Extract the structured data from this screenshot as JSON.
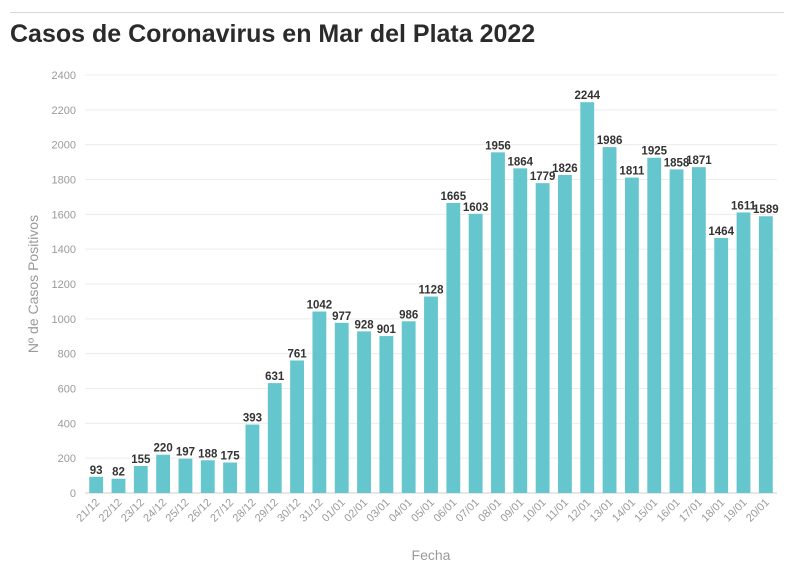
{
  "title": "Casos de Coronavirus en Mar del Plata 2022",
  "chart_data": {
    "type": "bar",
    "title": "Casos de Coronavirus en Mar del Plata 2022",
    "xlabel": "Fecha",
    "ylabel": "Nº de Casos Positivos",
    "ylim": [
      0,
      2400
    ],
    "yticks": [
      0,
      200,
      400,
      600,
      800,
      1000,
      1200,
      1400,
      1600,
      1800,
      2000,
      2200,
      2400
    ],
    "grid": true,
    "bar_color": "#66c6cd",
    "categories": [
      "21/12",
      "22/12",
      "23/12",
      "24/12",
      "25/12",
      "26/12",
      "27/12",
      "28/12",
      "29/12",
      "30/12",
      "31/12",
      "01/01",
      "02/01",
      "03/01",
      "04/01",
      "05/01",
      "06/01",
      "07/01",
      "08/01",
      "09/01",
      "10/01",
      "11/01",
      "12/01",
      "13/01",
      "14/01",
      "15/01",
      "16/01",
      "17/01",
      "18/01",
      "19/01",
      "20/01"
    ],
    "values": [
      93,
      82,
      155,
      220,
      197,
      188,
      175,
      393,
      631,
      761,
      1042,
      977,
      928,
      901,
      986,
      1128,
      1665,
      1603,
      1956,
      1864,
      1779,
      1826,
      2244,
      1986,
      1811,
      1925,
      1858,
      1871,
      1464,
      1611,
      1589
    ]
  }
}
